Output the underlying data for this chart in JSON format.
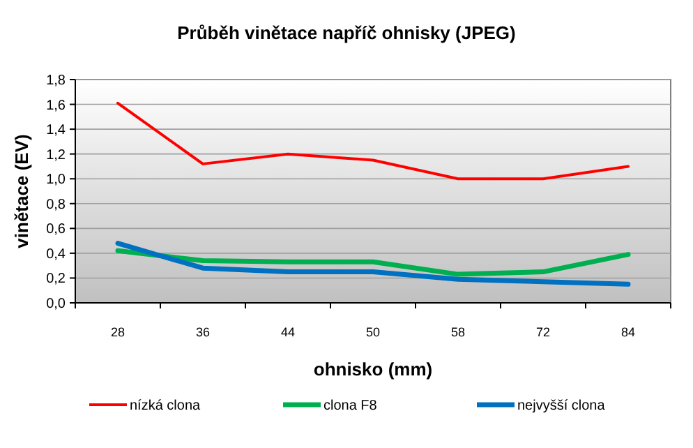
{
  "chart_data": {
    "type": "line",
    "title": "Průběh vinětace napříč ohnisky (JPEG)",
    "xlabel": "ohnisko (mm)",
    "ylabel": "vinětace (EV)",
    "categories": [
      "28",
      "36",
      "44",
      "50",
      "58",
      "72",
      "84"
    ],
    "series": [
      {
        "name": "nízká clona",
        "color": "#ff0000",
        "values": [
          1.61,
          1.12,
          1.2,
          1.15,
          1.0,
          1.0,
          1.1
        ]
      },
      {
        "name": "clona F8",
        "color": "#00b050",
        "values": [
          0.42,
          0.34,
          0.33,
          0.33,
          0.23,
          0.25,
          0.39
        ]
      },
      {
        "name": "nejvyšší clona",
        "color": "#0070c0",
        "values": [
          0.48,
          0.28,
          0.25,
          0.25,
          0.19,
          0.17,
          0.15
        ]
      }
    ],
    "ylim": [
      0,
      1.8
    ],
    "yticks": [
      {
        "value": 0,
        "label": "0,0"
      },
      {
        "value": 0.2,
        "label": "0,2"
      },
      {
        "value": 0.4,
        "label": "0,4"
      },
      {
        "value": 0.6,
        "label": "0,6"
      },
      {
        "value": 0.8,
        "label": "0,8"
      },
      {
        "value": 1,
        "label": "1,0"
      },
      {
        "value": 1.2,
        "label": "1,2"
      },
      {
        "value": 1.4,
        "label": "1,4"
      },
      {
        "value": 1.6,
        "label": "1,6"
      },
      {
        "value": 1.8,
        "label": "1,8"
      }
    ],
    "grid": "y",
    "legend": "bottom",
    "marker": "none",
    "line_style": "solid"
  }
}
